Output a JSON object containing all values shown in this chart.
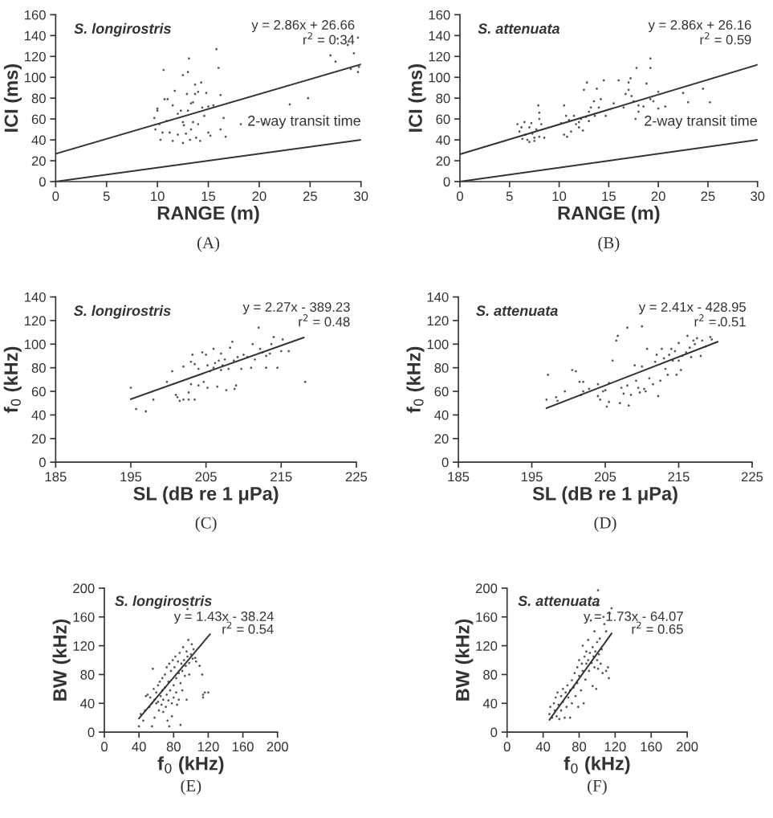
{
  "chart_data": [
    {
      "type": "scatter",
      "title": "S. longirostris",
      "xlabel": "RANGE (m)",
      "ylabel": "ICI (ms)",
      "xlim": [
        0,
        30
      ],
      "ylim": [
        0,
        160
      ],
      "xticks": [
        0,
        5,
        10,
        15,
        20,
        25,
        30
      ],
      "yticks": [
        0,
        20,
        40,
        60,
        80,
        100,
        120,
        140,
        160
      ],
      "grid": false,
      "legend": false,
      "annotations": [
        "y = 2.86x + 26.66",
        "r$^{2}$ = 0.34",
        "(A)"
      ],
      "series": [
        {
          "color": "#555555",
          "marker": "circle",
          "x": [
            9.7,
            9.8,
            10,
            10,
            10.2,
            10.3,
            10.5,
            10.6,
            10.7,
            11,
            10.9,
            11.2,
            11.5,
            11.7,
            11.5,
            12,
            12,
            12.3,
            12.5,
            12.5,
            12.5,
            12.6,
            12.8,
            12.9,
            13,
            13,
            13.1,
            13.2,
            13.3,
            13.3,
            13.5,
            13.5,
            13.7,
            13.7,
            13.8,
            14,
            14,
            14.2,
            14.3,
            14.4,
            14.6,
            14.8,
            15,
            15,
            15.2,
            15.5,
            15.8,
            16,
            16.2,
            16.2,
            16.5,
            16.7,
            18.2,
            20.5,
            23,
            24.8,
            27,
            27.5,
            27.7,
            28.7,
            29,
            29.3,
            29.7,
            29.7,
            29.8
          ],
          "values": [
            61,
            50,
            70,
            68,
            55,
            40,
            47,
            107,
            79,
            79,
            58,
            47,
            39,
            87,
            73,
            65,
            45,
            68,
            102,
            57,
            37,
            54,
            46,
            84,
            68,
            105,
            118,
            40,
            75,
            50,
            76,
            57,
            93,
            84,
            42,
            55,
            86,
            39,
            95,
            71,
            63,
            85,
            47,
            72,
            44,
            73,
            127,
            109,
            83,
            50,
            61,
            43,
            55,
            56,
            74,
            80,
            121,
            115,
            137,
            131,
            108,
            123,
            138,
            105,
            110
          ]
        },
        {
          "type": "line",
          "color": "#333333",
          "x": [
            0,
            30
          ],
          "values": [
            26.7,
            112.5
          ]
        },
        {
          "type": "line",
          "name": "2-way transit time",
          "color": "#333333",
          "x": [
            0,
            30
          ],
          "values": [
            0,
            40
          ]
        }
      ]
    },
    {
      "type": "scatter",
      "title": "S. attenuata",
      "xlabel": "RANGE (m)",
      "ylabel": "ICI (ms)",
      "xlim": [
        0,
        30
      ],
      "ylim": [
        0,
        160
      ],
      "xticks": [
        0,
        5,
        10,
        15,
        20,
        25,
        30
      ],
      "yticks": [
        0,
        20,
        40,
        60,
        80,
        100,
        120,
        140,
        160
      ],
      "grid": false,
      "legend": false,
      "annotations": [
        "y = 2.86x + 26.16",
        "r$^{2}$ = 0.59",
        "(B)"
      ],
      "series": [
        {
          "color": "#555555",
          "marker": "circle",
          "x": [
            5.8,
            6,
            6.2,
            6.3,
            6.5,
            6.6,
            6.8,
            7,
            7,
            7.2,
            7.3,
            7.5,
            7.5,
            7.7,
            7.9,
            8,
            8,
            8,
            8.2,
            8.5,
            10.2,
            10.5,
            10.5,
            10.7,
            10.8,
            11,
            11.2,
            11.5,
            11.7,
            12,
            12,
            12.2,
            12.4,
            12.5,
            12.7,
            12.8,
            13,
            13,
            13.2,
            13.5,
            13.6,
            13.8,
            14,
            14.2,
            14.5,
            14.7,
            15.5,
            16,
            16.5,
            16.7,
            17,
            17,
            17.2,
            17.3,
            17.5,
            17.7,
            17.8,
            18,
            18,
            18.5,
            18.8,
            19.2,
            19.2,
            19.2,
            19.5,
            20,
            20,
            20.7,
            22.5,
            23,
            24.5,
            25.2
          ],
          "values": [
            55,
            48,
            52,
            41,
            57,
            45,
            40,
            52,
            38,
            56,
            46,
            42,
            39,
            50,
            73,
            66,
            60,
            43,
            55,
            42,
            56,
            73,
            45,
            63,
            43,
            59,
            48,
            63,
            55,
            57,
            52,
            60,
            49,
            88,
            62,
            95,
            58,
            67,
            71,
            77,
            63,
            89,
            71,
            79,
            97,
            63,
            75,
            97,
            71,
            84,
            88,
            95,
            99,
            82,
            77,
            60,
            109,
            67,
            73,
            72,
            94,
            118,
            109,
            79,
            77,
            86,
            70,
            72,
            85,
            76,
            89,
            76
          ]
        },
        {
          "type": "line",
          "color": "#333333",
          "x": [
            0,
            30
          ],
          "values": [
            26.2,
            112
          ]
        },
        {
          "type": "line",
          "name": "2-way transit time",
          "color": "#333333",
          "x": [
            0,
            30
          ],
          "values": [
            0,
            40
          ]
        }
      ]
    },
    {
      "type": "scatter",
      "title": "S. longirostris",
      "xlabel": "SL (dB re 1 μPa)",
      "ylabel": "f$_{0}$ (kHz)",
      "xlim": [
        185,
        225
      ],
      "ylim": [
        0,
        140
      ],
      "xticks": [
        185,
        195,
        205,
        215,
        225
      ],
      "yticks": [
        0,
        20,
        40,
        60,
        80,
        100,
        120,
        140
      ],
      "grid": false,
      "legend": false,
      "annotations": [
        "y = 2.27x - 389.23",
        "r$^{2}$ = 0.48",
        "(C)"
      ],
      "series": [
        {
          "color": "#555555",
          "marker": "circle",
          "x": [
            195,
            195.7,
            197,
            198,
            199.8,
            200.5,
            201,
            201.2,
            201.5,
            202,
            202,
            202.7,
            202.7,
            203,
            203.2,
            203,
            203.5,
            203.5,
            204,
            204,
            204.5,
            204.7,
            205,
            205.2,
            205.2,
            205.5,
            206,
            206,
            206.2,
            206.5,
            206.7,
            207,
            207,
            207.2,
            207.5,
            207.7,
            208,
            208.2,
            208.5,
            208.7,
            208.8,
            209,
            209.2,
            209.7,
            210,
            210.5,
            211,
            211.2,
            211.5,
            212,
            212.2,
            212.5,
            213,
            213,
            213.5,
            213.7,
            214,
            214.5,
            215,
            215.2,
            216,
            218.2
          ],
          "values": [
            63,
            45,
            43,
            53,
            68,
            77,
            57,
            55,
            52,
            81,
            53,
            59,
            53,
            66,
            91,
            85,
            83,
            53,
            65,
            79,
            93,
            68,
            91,
            82,
            63,
            77,
            80,
            96,
            84,
            64,
            86,
            78,
            92,
            82,
            87,
            61,
            79,
            97,
            102,
            86,
            62,
            65,
            89,
            79,
            91,
            89,
            80,
            100,
            87,
            114,
            96,
            93,
            90,
            80,
            92,
            100,
            106,
            80,
            94,
            104,
            94,
            68
          ]
        },
        {
          "type": "line",
          "color": "#333333",
          "x": [
            195,
            218
          ],
          "values": [
            53.4,
            105.6
          ]
        }
      ]
    },
    {
      "type": "scatter",
      "title": "S. attenuata",
      "xlabel": "SL (dB re 1 μPa)",
      "ylabel": "f$_{0}$ (kHz)",
      "xlim": [
        185,
        225
      ],
      "ylim": [
        0,
        140
      ],
      "xticks": [
        185,
        195,
        205,
        215,
        225
      ],
      "yticks": [
        0,
        20,
        40,
        60,
        80,
        100,
        120,
        140
      ],
      "grid": false,
      "legend": false,
      "annotations": [
        "y = 2.41x - 428.95",
        "r$^{2}$ = 0.51",
        "(D)"
      ],
      "series": [
        {
          "color": "#555555",
          "marker": "circle",
          "x": [
            197,
            197.2,
            198.3,
            198.5,
            199.5,
            200.5,
            201,
            201.5,
            201.7,
            202,
            202,
            202.8,
            204,
            204,
            204.3,
            204.7,
            205,
            205.2,
            205.5,
            205.5,
            206,
            206.5,
            206.7,
            207,
            207.2,
            207.5,
            208,
            208,
            208.2,
            208.5,
            209,
            209.2,
            209.5,
            209.7,
            210,
            210,
            210.3,
            210.5,
            210.7,
            211,
            211.5,
            211.8,
            212,
            212.2,
            212.5,
            212.7,
            213,
            213.2,
            213.5,
            213.7,
            214,
            214.2,
            214.5,
            214.7,
            215,
            215,
            215.3,
            215.5,
            216,
            216.2,
            216.5,
            216.7,
            217,
            217.2,
            217.5,
            218,
            218.2,
            218.7,
            219.3,
            219.5,
            220.5
          ],
          "values": [
            53,
            74,
            55,
            52,
            60,
            78,
            77,
            68,
            57,
            60,
            68,
            62,
            66,
            56,
            53,
            60,
            61,
            47,
            67,
            51,
            86,
            103,
            107,
            50,
            63,
            58,
            114,
            65,
            48,
            57,
            82,
            69,
            63,
            59,
            81,
            115,
            62,
            60,
            96,
            71,
            66,
            85,
            91,
            56,
            69,
            96,
            88,
            79,
            74,
            91,
            96,
            86,
            94,
            74,
            101,
            86,
            78,
            90,
            93,
            107,
            97,
            89,
            103,
            100,
            105,
            90,
            103,
            98,
            106,
            104,
            116
          ]
        },
        {
          "type": "line",
          "color": "#333333",
          "x": [
            197,
            220.3
          ],
          "values": [
            45.8,
            102
          ]
        }
      ]
    },
    {
      "type": "scatter",
      "title": "S. longirostris",
      "xlabel": "f$_{0}$ (kHz)",
      "ylabel": "BW (kHz)",
      "xlim": [
        0,
        200
      ],
      "ylim": [
        0,
        200
      ],
      "xticks": [
        0,
        40,
        80,
        120,
        160,
        200
      ],
      "yticks": [
        0,
        40,
        80,
        120,
        160,
        200
      ],
      "grid": false,
      "legend": false,
      "annotations": [
        "y = 1.43x - 38.24",
        "r$^{2}$ = 0.54",
        "(E)"
      ],
      "series": [
        {
          "color": "#555555",
          "marker": "circle",
          "x": [
            40,
            42,
            45,
            47,
            48,
            50,
            52,
            53,
            55,
            55,
            56,
            57,
            58,
            58,
            60,
            60,
            62,
            62,
            63,
            64,
            65,
            66,
            67,
            67,
            68,
            68,
            70,
            70,
            71,
            72,
            72,
            73,
            74,
            74,
            75,
            75,
            76,
            77,
            78,
            78,
            79,
            80,
            80,
            81,
            82,
            83,
            83,
            84,
            85,
            86,
            86,
            87,
            88,
            88,
            89,
            90,
            90,
            91,
            92,
            93,
            94,
            95,
            95,
            96,
            97,
            98,
            98,
            100,
            101,
            102,
            103,
            105,
            106,
            110,
            113,
            114,
            114,
            116,
            120,
            96
          ],
          "values": [
            8,
            25,
            16,
            30,
            50,
            52,
            35,
            48,
            40,
            8,
            88,
            60,
            45,
            20,
            55,
            40,
            65,
            42,
            30,
            70,
            50,
            38,
            75,
            58,
            45,
            28,
            80,
            62,
            35,
            52,
            90,
            16,
            70,
            44,
            8,
            95,
            58,
            85,
            40,
            22,
            100,
            65,
            48,
            90,
            105,
            75,
            55,
            38,
            98,
            82,
            45,
            110,
            68,
            10,
            95,
            85,
            58,
            118,
            100,
            78,
            92,
            112,
            45,
            105,
            128,
            96,
            80,
            108,
            122,
            102,
            115,
            103,
            98,
            92,
            80,
            48,
            52,
            55,
            55,
            171
          ]
        },
        {
          "type": "line",
          "color": "#333333",
          "x": [
            40,
            122
          ],
          "values": [
            19,
            136
          ]
        }
      ]
    },
    {
      "type": "scatter",
      "title": "S. attenuata",
      "xlabel": "f$_{0}$ (kHz)",
      "ylabel": "BW (kHz)",
      "xlim": [
        0,
        200
      ],
      "ylim": [
        0,
        200
      ],
      "xticks": [
        0,
        40,
        80,
        120,
        160,
        200
      ],
      "yticks": [
        0,
        40,
        80,
        120,
        160,
        200
      ],
      "grid": false,
      "legend": false,
      "annotations": [
        "y = 1.73x - 64.07",
        "r$^{2}$ = 0.65",
        "(F)"
      ],
      "series": [
        {
          "color": "#555555",
          "marker": "circle",
          "x": [
            47,
            48,
            50,
            52,
            53,
            54,
            55,
            56,
            57,
            58,
            60,
            60,
            62,
            62,
            64,
            65,
            66,
            67,
            68,
            70,
            70,
            72,
            72,
            74,
            75,
            76,
            78,
            78,
            79,
            80,
            80,
            82,
            83,
            84,
            84,
            85,
            86,
            87,
            88,
            88,
            90,
            90,
            91,
            92,
            93,
            94,
            95,
            95,
            96,
            97,
            97,
            98,
            99,
            100,
            100,
            101,
            102,
            103,
            104,
            105,
            106,
            107,
            108,
            110,
            110,
            112,
            113,
            114,
            116,
            101,
            100
          ],
          "values": [
            25,
            35,
            20,
            40,
            30,
            48,
            22,
            55,
            38,
            18,
            50,
            30,
            60,
            42,
            20,
            55,
            35,
            65,
            48,
            20,
            58,
            72,
            40,
            62,
            82,
            50,
            90,
            68,
            35,
            100,
            78,
            58,
            95,
            85,
            120,
            40,
            105,
            73,
            112,
            95,
            100,
            128,
            85,
            110,
            155,
            96,
            118,
            64,
            105,
            90,
            140,
            112,
            60,
            100,
            125,
            88,
            108,
            130,
            95,
            115,
            82,
            160,
            150,
            85,
            140,
            90,
            75,
            165,
            172,
            197,
            176
          ]
        },
        {
          "type": "line",
          "color": "#333333",
          "x": [
            47,
            116
          ],
          "values": [
            17,
            137
          ]
        }
      ]
    }
  ]
}
